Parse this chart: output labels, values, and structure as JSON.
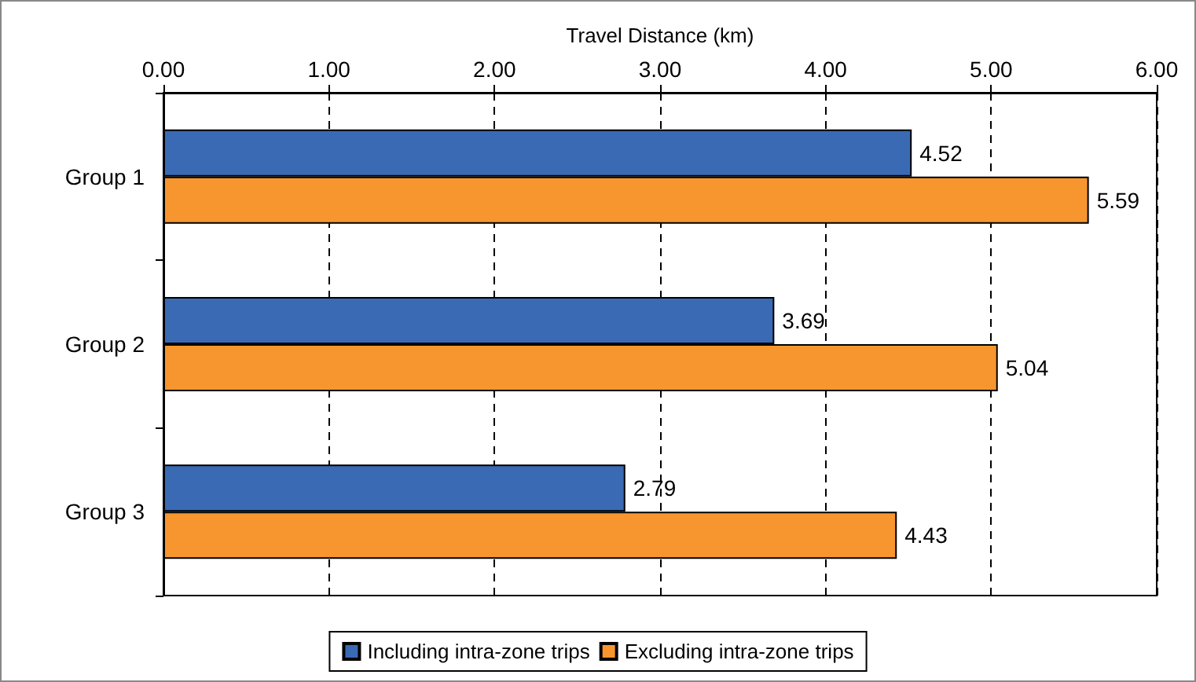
{
  "chart_data": {
    "type": "bar",
    "orientation": "horizontal",
    "xlabel": "Travel Distance (km)",
    "categories": [
      "Group 1",
      "Group 2",
      "Group 3"
    ],
    "series": [
      {
        "name": "Including intra-zone trips",
        "color": "#3a6ab4",
        "values": [
          4.52,
          3.69,
          2.79
        ]
      },
      {
        "name": "Excluding intra-zone trips",
        "color": "#f7962f",
        "values": [
          5.59,
          5.04,
          4.43
        ]
      }
    ],
    "xlim": [
      0,
      6
    ],
    "xticks": [
      {
        "value": 0,
        "label": "0.00"
      },
      {
        "value": 1,
        "label": "1.00"
      },
      {
        "value": 2,
        "label": "2.00"
      },
      {
        "value": 3,
        "label": "3.00"
      },
      {
        "value": 4,
        "label": "4.00"
      },
      {
        "value": 5,
        "label": "5.00"
      },
      {
        "value": 6,
        "label": "6.00"
      }
    ],
    "grid": "x",
    "legend": "bottom",
    "data_labels": true
  }
}
